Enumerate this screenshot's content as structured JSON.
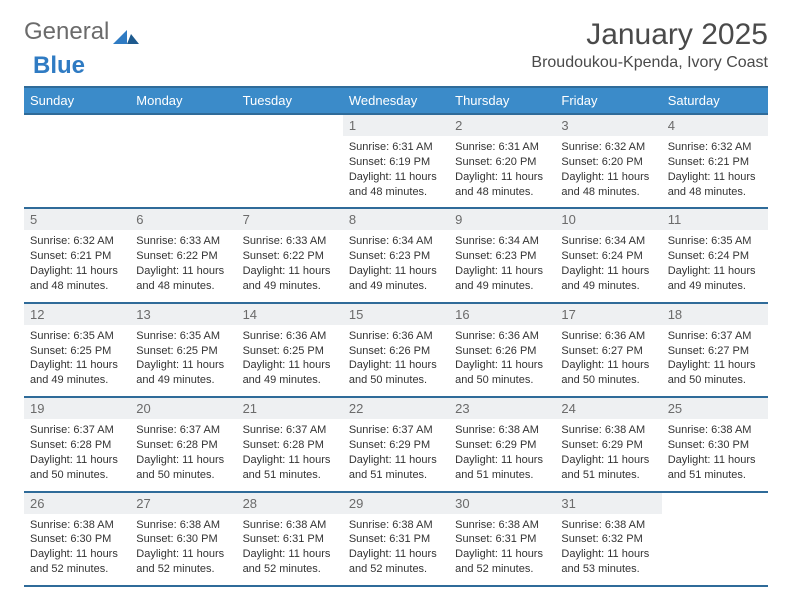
{
  "logo": {
    "text1": "General",
    "text2": "Blue"
  },
  "title": "January 2025",
  "location": "Broudoukou-Kpenda, Ivory Coast",
  "colors": {
    "header_bg": "#3b8bc9",
    "header_text": "#ffffff",
    "border": "#2f6b99",
    "daynum_bg": "#eef0f2",
    "daynum_text": "#6b6b6b",
    "body_text": "#333333",
    "page_bg": "#ffffff"
  },
  "weekdays": [
    "Sunday",
    "Monday",
    "Tuesday",
    "Wednesday",
    "Thursday",
    "Friday",
    "Saturday"
  ],
  "weeks": [
    [
      {
        "blank": true
      },
      {
        "blank": true
      },
      {
        "blank": true
      },
      {
        "day": 1,
        "sunrise": "6:31 AM",
        "sunset": "6:19 PM",
        "daylight": "11 hours and 48 minutes."
      },
      {
        "day": 2,
        "sunrise": "6:31 AM",
        "sunset": "6:20 PM",
        "daylight": "11 hours and 48 minutes."
      },
      {
        "day": 3,
        "sunrise": "6:32 AM",
        "sunset": "6:20 PM",
        "daylight": "11 hours and 48 minutes."
      },
      {
        "day": 4,
        "sunrise": "6:32 AM",
        "sunset": "6:21 PM",
        "daylight": "11 hours and 48 minutes."
      }
    ],
    [
      {
        "day": 5,
        "sunrise": "6:32 AM",
        "sunset": "6:21 PM",
        "daylight": "11 hours and 48 minutes."
      },
      {
        "day": 6,
        "sunrise": "6:33 AM",
        "sunset": "6:22 PM",
        "daylight": "11 hours and 48 minutes."
      },
      {
        "day": 7,
        "sunrise": "6:33 AM",
        "sunset": "6:22 PM",
        "daylight": "11 hours and 49 minutes."
      },
      {
        "day": 8,
        "sunrise": "6:34 AM",
        "sunset": "6:23 PM",
        "daylight": "11 hours and 49 minutes."
      },
      {
        "day": 9,
        "sunrise": "6:34 AM",
        "sunset": "6:23 PM",
        "daylight": "11 hours and 49 minutes."
      },
      {
        "day": 10,
        "sunrise": "6:34 AM",
        "sunset": "6:24 PM",
        "daylight": "11 hours and 49 minutes."
      },
      {
        "day": 11,
        "sunrise": "6:35 AM",
        "sunset": "6:24 PM",
        "daylight": "11 hours and 49 minutes."
      }
    ],
    [
      {
        "day": 12,
        "sunrise": "6:35 AM",
        "sunset": "6:25 PM",
        "daylight": "11 hours and 49 minutes."
      },
      {
        "day": 13,
        "sunrise": "6:35 AM",
        "sunset": "6:25 PM",
        "daylight": "11 hours and 49 minutes."
      },
      {
        "day": 14,
        "sunrise": "6:36 AM",
        "sunset": "6:25 PM",
        "daylight": "11 hours and 49 minutes."
      },
      {
        "day": 15,
        "sunrise": "6:36 AM",
        "sunset": "6:26 PM",
        "daylight": "11 hours and 50 minutes."
      },
      {
        "day": 16,
        "sunrise": "6:36 AM",
        "sunset": "6:26 PM",
        "daylight": "11 hours and 50 minutes."
      },
      {
        "day": 17,
        "sunrise": "6:36 AM",
        "sunset": "6:27 PM",
        "daylight": "11 hours and 50 minutes."
      },
      {
        "day": 18,
        "sunrise": "6:37 AM",
        "sunset": "6:27 PM",
        "daylight": "11 hours and 50 minutes."
      }
    ],
    [
      {
        "day": 19,
        "sunrise": "6:37 AM",
        "sunset": "6:28 PM",
        "daylight": "11 hours and 50 minutes."
      },
      {
        "day": 20,
        "sunrise": "6:37 AM",
        "sunset": "6:28 PM",
        "daylight": "11 hours and 50 minutes."
      },
      {
        "day": 21,
        "sunrise": "6:37 AM",
        "sunset": "6:28 PM",
        "daylight": "11 hours and 51 minutes."
      },
      {
        "day": 22,
        "sunrise": "6:37 AM",
        "sunset": "6:29 PM",
        "daylight": "11 hours and 51 minutes."
      },
      {
        "day": 23,
        "sunrise": "6:38 AM",
        "sunset": "6:29 PM",
        "daylight": "11 hours and 51 minutes."
      },
      {
        "day": 24,
        "sunrise": "6:38 AM",
        "sunset": "6:29 PM",
        "daylight": "11 hours and 51 minutes."
      },
      {
        "day": 25,
        "sunrise": "6:38 AM",
        "sunset": "6:30 PM",
        "daylight": "11 hours and 51 minutes."
      }
    ],
    [
      {
        "day": 26,
        "sunrise": "6:38 AM",
        "sunset": "6:30 PM",
        "daylight": "11 hours and 52 minutes."
      },
      {
        "day": 27,
        "sunrise": "6:38 AM",
        "sunset": "6:30 PM",
        "daylight": "11 hours and 52 minutes."
      },
      {
        "day": 28,
        "sunrise": "6:38 AM",
        "sunset": "6:31 PM",
        "daylight": "11 hours and 52 minutes."
      },
      {
        "day": 29,
        "sunrise": "6:38 AM",
        "sunset": "6:31 PM",
        "daylight": "11 hours and 52 minutes."
      },
      {
        "day": 30,
        "sunrise": "6:38 AM",
        "sunset": "6:31 PM",
        "daylight": "11 hours and 52 minutes."
      },
      {
        "day": 31,
        "sunrise": "6:38 AM",
        "sunset": "6:32 PM",
        "daylight": "11 hours and 53 minutes."
      },
      {
        "blank": true
      }
    ]
  ],
  "labels": {
    "sunrise_prefix": "Sunrise: ",
    "sunset_prefix": "Sunset: ",
    "daylight_prefix": "Daylight: "
  }
}
